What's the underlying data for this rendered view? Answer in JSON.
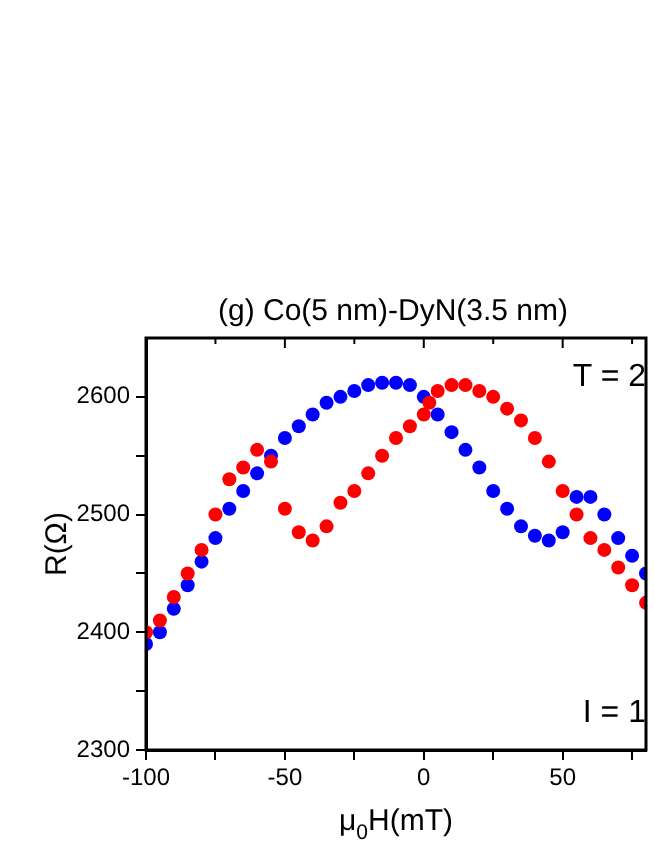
{
  "chart_data": {
    "type": "scatter",
    "title": "(g) Co(5 nm)-DyN(3.5 nm)",
    "xlabel": "μ$_{0}$H(mT)",
    "ylabel": "R(Ω)",
    "annotations": [
      "T = 2",
      "I = 1"
    ],
    "xlim": [
      -100,
      80
    ],
    "xticks": [
      -100,
      {
        "value": -75,
        "label": null
      },
      -50,
      {
        "value": -25,
        "label": null
      },
      0,
      {
        "value": 25,
        "label": null
      },
      50,
      {
        "value": 75,
        "label": null
      }
    ],
    "ylim": [
      2300,
      2650
    ],
    "yticks": [
      2300,
      {
        "value": 2350,
        "label": null
      },
      2400,
      {
        "value": 2450,
        "label": null
      },
      2500,
      {
        "value": 2550,
        "label": null
      },
      2600
    ],
    "marker": "circle",
    "grid": false,
    "legend": false,
    "series": [
      {
        "color": "#ff0000",
        "x": [
          -100,
          -95,
          -90,
          -85,
          -80,
          -75,
          -70,
          -65,
          -60,
          -55,
          -50,
          -45,
          -40,
          -35,
          -30,
          -25,
          -20,
          -15,
          -10,
          -5,
          0,
          2,
          5,
          10,
          15,
          20,
          25,
          30,
          35,
          40,
          45,
          50,
          55,
          60,
          65,
          70,
          75,
          80
        ],
        "values": [
          2400,
          2410,
          2430,
          2450,
          2470,
          2500,
          2530,
          2540,
          2555,
          2545,
          2505,
          2485,
          2478,
          2490,
          2510,
          2520,
          2535,
          2550,
          2565,
          2575,
          2585,
          2595,
          2605,
          2610,
          2610,
          2605,
          2600,
          2590,
          2580,
          2565,
          2545,
          2520,
          2500,
          2480,
          2470,
          2455,
          2440,
          2425
        ]
      },
      {
        "color": "#0000ff",
        "x": [
          -100,
          -95,
          -90,
          -85,
          -80,
          -75,
          -70,
          -65,
          -60,
          -55,
          -50,
          -45,
          -40,
          -35,
          -30,
          -25,
          -20,
          -15,
          -10,
          -5,
          0,
          5,
          10,
          15,
          20,
          25,
          30,
          35,
          40,
          45,
          50,
          55,
          60,
          65,
          70,
          75,
          80
        ],
        "values": [
          2390,
          2400,
          2420,
          2440,
          2460,
          2480,
          2505,
          2520,
          2535,
          2550,
          2565,
          2575,
          2585,
          2595,
          2600,
          2605,
          2610,
          2612,
          2612,
          2610,
          2600,
          2585,
          2570,
          2555,
          2540,
          2520,
          2505,
          2490,
          2482,
          2478,
          2485,
          2515,
          2515,
          2500,
          2480,
          2465,
          2450
        ]
      }
    ]
  }
}
